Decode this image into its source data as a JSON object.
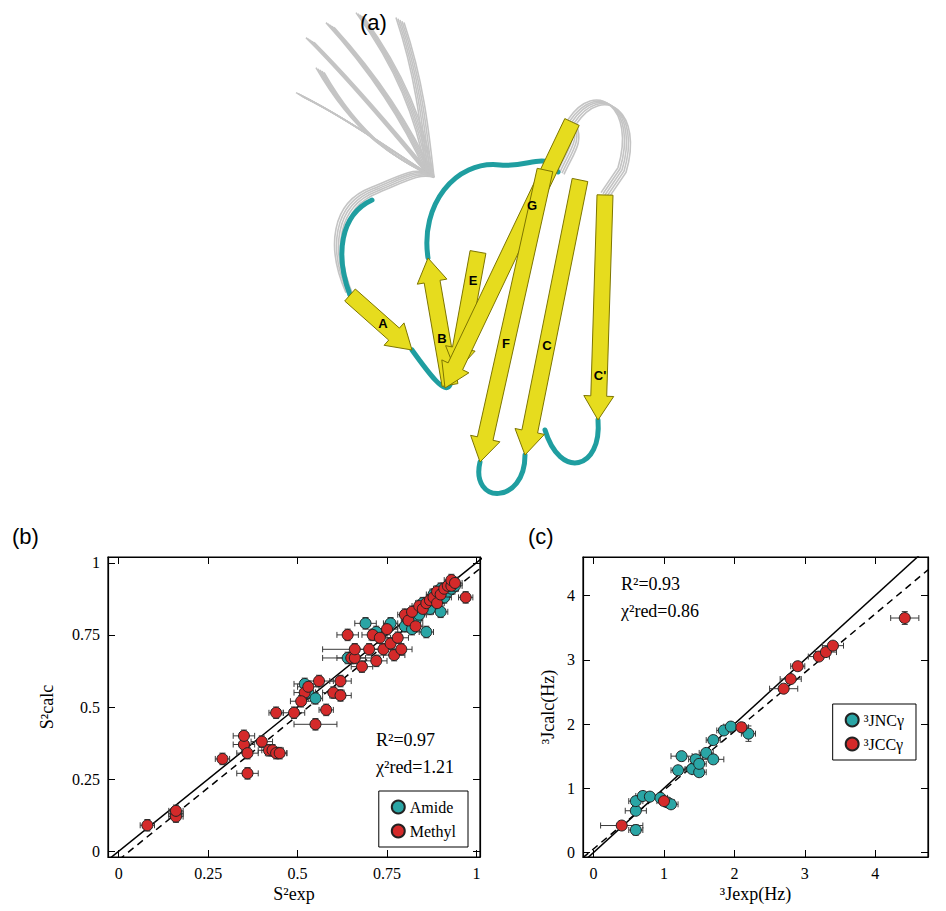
{
  "panel_a": {
    "label": "(a)",
    "strand_labels": [
      "A",
      "B",
      "E",
      "G",
      "F",
      "C",
      "C'"
    ]
  },
  "chart_data": [
    {
      "panel_label": "(b)",
      "type": "scatter",
      "x_label": "S²exp",
      "y_label": "S²calc",
      "xlim": [
        -0.03,
        1.01
      ],
      "ylim": [
        -0.02,
        1.02
      ],
      "xticks": [
        0,
        0.25,
        0.5,
        0.75,
        1
      ],
      "yticks": [
        0,
        0.25,
        0.5,
        0.75,
        1
      ],
      "annotations": [
        "R²=0.97",
        "χ²red=1.21"
      ],
      "legend": "lower right",
      "marker": "circle",
      "series": [
        {
          "name": "Amide",
          "color": "#2aa5a5",
          "values": [
            [
              0.16,
              0.13
            ],
            [
              0.52,
              0.58
            ],
            [
              0.53,
              0.55
            ],
            [
              0.55,
              0.53
            ],
            [
              0.64,
              0.67
            ],
            [
              0.69,
              0.79
            ],
            [
              0.72,
              0.76
            ],
            [
              0.76,
              0.79
            ],
            [
              0.8,
              0.78
            ],
            [
              0.82,
              0.77
            ],
            [
              0.83,
              0.8
            ],
            [
              0.84,
              0.82
            ],
            [
              0.85,
              0.86
            ],
            [
              0.86,
              0.76
            ],
            [
              0.87,
              0.84
            ],
            [
              0.88,
              0.89
            ],
            [
              0.89,
              0.88
            ],
            [
              0.9,
              0.83
            ],
            [
              0.9,
              0.91
            ],
            [
              0.91,
              0.88
            ],
            [
              0.92,
              0.9
            ],
            [
              0.93,
              0.91
            ],
            [
              0.94,
              0.92
            ]
          ],
          "x_errors": [
            0.02,
            0.03,
            0.02,
            0.02,
            0.03,
            0.03,
            0.02,
            0.02,
            0.02,
            0.02,
            0.02,
            0.02,
            0.02,
            0.02,
            0.02,
            0.02,
            0.02,
            0.02,
            0.02,
            0.02,
            0.02,
            0.02,
            0.02
          ],
          "y_errors": [
            0.02,
            0.02,
            0.02,
            0.02,
            0.02,
            0.02,
            0.02,
            0.02,
            0.02,
            0.02,
            0.02,
            0.02,
            0.02,
            0.02,
            0.02,
            0.02,
            0.02,
            0.02,
            0.02,
            0.02,
            0.02,
            0.02,
            0.02
          ]
        },
        {
          "name": "Methyl",
          "color": "#d42a2a",
          "values": [
            [
              0.08,
              0.09
            ],
            [
              0.16,
              0.12
            ],
            [
              0.16,
              0.14
            ],
            [
              0.29,
              0.32
            ],
            [
              0.35,
              0.37
            ],
            [
              0.35,
              0.4
            ],
            [
              0.36,
              0.34
            ],
            [
              0.36,
              0.27
            ],
            [
              0.4,
              0.38
            ],
            [
              0.42,
              0.35
            ],
            [
              0.43,
              0.35
            ],
            [
              0.44,
              0.34
            ],
            [
              0.45,
              0.34
            ],
            [
              0.44,
              0.48
            ],
            [
              0.49,
              0.48
            ],
            [
              0.52,
              0.55
            ],
            [
              0.53,
              0.57
            ],
            [
              0.55,
              0.44
            ],
            [
              0.56,
              0.59
            ],
            [
              0.58,
              0.49
            ],
            [
              0.6,
              0.55
            ],
            [
              0.62,
              0.54
            ],
            [
              0.62,
              0.59
            ],
            [
              0.64,
              0.75
            ],
            [
              0.65,
              0.67
            ],
            [
              0.66,
              0.67
            ],
            [
              0.66,
              0.7
            ],
            [
              0.68,
              0.64
            ],
            [
              0.7,
              0.7
            ],
            [
              0.71,
              0.75
            ],
            [
              0.72,
              0.66
            ],
            [
              0.73,
              0.74
            ],
            [
              0.74,
              0.7
            ],
            [
              0.75,
              0.77
            ],
            [
              0.76,
              0.72
            ],
            [
              0.77,
              0.68
            ],
            [
              0.78,
              0.74
            ],
            [
              0.79,
              0.7
            ],
            [
              0.8,
              0.82
            ],
            [
              0.81,
              0.8
            ],
            [
              0.82,
              0.83
            ],
            [
              0.83,
              0.78
            ],
            [
              0.84,
              0.85
            ],
            [
              0.85,
              0.84
            ],
            [
              0.86,
              0.86
            ],
            [
              0.87,
              0.87
            ],
            [
              0.88,
              0.88
            ],
            [
              0.89,
              0.86
            ],
            [
              0.89,
              0.9
            ],
            [
              0.9,
              0.89
            ],
            [
              0.91,
              0.91
            ],
            [
              0.92,
              0.92
            ],
            [
              0.93,
              0.92
            ],
            [
              0.93,
              0.94
            ],
            [
              0.94,
              0.93
            ],
            [
              0.97,
              0.88
            ],
            [
              0.51,
              0.52
            ]
          ],
          "x_errors": [
            0.02,
            0.02,
            0.02,
            0.02,
            0.03,
            0.03,
            0.03,
            0.03,
            0.03,
            0.03,
            0.03,
            0.03,
            0.02,
            0.02,
            0.03,
            0.03,
            0.03,
            0.06,
            0.04,
            0.02,
            0.03,
            0.03,
            0.03,
            0.03,
            0.08,
            0.03,
            0.09,
            0.03,
            0.03,
            0.03,
            0.03,
            0.03,
            0.03,
            0.03,
            0.03,
            0.03,
            0.03,
            0.03,
            0.02,
            0.02,
            0.02,
            0.02,
            0.02,
            0.02,
            0.02,
            0.02,
            0.02,
            0.02,
            0.02,
            0.02,
            0.02,
            0.02,
            0.02,
            0.02,
            0.02,
            0.02,
            0.03
          ],
          "y_errors": [
            0.02,
            0.02,
            0.02,
            0.02,
            0.02,
            0.02,
            0.02,
            0.02,
            0.02,
            0.02,
            0.02,
            0.02,
            0.02,
            0.02,
            0.02,
            0.02,
            0.02,
            0.02,
            0.02,
            0.02,
            0.02,
            0.02,
            0.02,
            0.02,
            0.02,
            0.02,
            0.02,
            0.02,
            0.02,
            0.02,
            0.02,
            0.02,
            0.02,
            0.02,
            0.02,
            0.02,
            0.02,
            0.02,
            0.02,
            0.02,
            0.02,
            0.02,
            0.02,
            0.02,
            0.02,
            0.02,
            0.02,
            0.02,
            0.02,
            0.02,
            0.02,
            0.02,
            0.02,
            0.02,
            0.02,
            0.02,
            0.02
          ]
        },
        {
          "type": "line",
          "line_style": "solid",
          "color": "#000000",
          "values": [
            [
              -0.03,
              -0.03
            ],
            [
              1.02,
              1.02
            ]
          ]
        },
        {
          "type": "line",
          "line_style": "dashed",
          "color": "#000000",
          "values": [
            [
              0,
              -0.03
            ],
            [
              1.02,
              0.99
            ]
          ]
        }
      ]
    },
    {
      "panel_label": "(c)",
      "type": "scatter",
      "x_label": "³Jexp(Hz)",
      "y_label": "³Jcalc(Hz)",
      "xlim": [
        -0.15,
        4.75
      ],
      "ylim": [
        -0.07,
        4.6
      ],
      "xticks": [
        0,
        1,
        2,
        3,
        4
      ],
      "yticks": [
        0,
        1,
        2,
        3,
        4
      ],
      "annotations": [
        "R²=0.93",
        "χ²red=0.86"
      ],
      "legend": "right",
      "marker": "circle",
      "series": [
        {
          "name": "³JNCγ",
          "color": "#2aa5a5",
          "values": [
            [
              0.6,
              0.35
            ],
            [
              0.6,
              0.65
            ],
            [
              0.6,
              0.8
            ],
            [
              0.7,
              0.88
            ],
            [
              0.8,
              0.87
            ],
            [
              0.95,
              0.85
            ],
            [
              1.05,
              0.78
            ],
            [
              1.1,
              0.75
            ],
            [
              1.2,
              1.28
            ],
            [
              1.25,
              1.5
            ],
            [
              1.4,
              1.3
            ],
            [
              1.45,
              1.45
            ],
            [
              1.5,
              1.25
            ],
            [
              1.5,
              1.38
            ],
            [
              1.6,
              1.55
            ],
            [
              1.7,
              1.45
            ],
            [
              1.7,
              1.75
            ],
            [
              1.85,
              1.9
            ],
            [
              1.95,
              1.96
            ],
            [
              2.2,
              1.85
            ]
          ],
          "x_errors": [
            0.1,
            0.15,
            0.1,
            0.1,
            0.15,
            0.1,
            0.1,
            0.1,
            0.1,
            0.15,
            0.1,
            0.1,
            0.1,
            0.1,
            0.1,
            0.15,
            0.1,
            0.1,
            0.1,
            0.1
          ],
          "y_errors": [
            0.08,
            0.06,
            0.06,
            0.06,
            0.06,
            0.06,
            0.06,
            0.06,
            0.06,
            0.06,
            0.06,
            0.06,
            0.06,
            0.06,
            0.06,
            0.06,
            0.06,
            0.06,
            0.06,
            0.12
          ]
        },
        {
          "name": "³JCCγ",
          "color": "#d42a2a",
          "values": [
            [
              0.4,
              0.42
            ],
            [
              1.0,
              0.8
            ],
            [
              2.1,
              1.95
            ],
            [
              2.7,
              2.55
            ],
            [
              2.8,
              2.7
            ],
            [
              2.9,
              2.9
            ],
            [
              3.2,
              3.05
            ],
            [
              3.3,
              3.12
            ],
            [
              3.4,
              3.22
            ],
            [
              4.42,
              3.65
            ]
          ],
          "x_errors": [
            0.3,
            0.1,
            0.1,
            0.2,
            0.15,
            0.1,
            0.15,
            0.15,
            0.15,
            0.2
          ],
          "y_errors": [
            0.05,
            0.05,
            0.05,
            0.06,
            0.06,
            0.05,
            0.05,
            0.05,
            0.06,
            0.1
          ]
        },
        {
          "type": "line",
          "line_style": "solid",
          "color": "#000000",
          "values": [
            [
              -0.15,
              -0.15
            ],
            [
              4.75,
              4.75
            ]
          ]
        },
        {
          "type": "line",
          "line_style": "dashed",
          "color": "#000000",
          "values": [
            [
              -0.15,
              -0.08
            ],
            [
              4.75,
              4.4
            ]
          ]
        }
      ]
    }
  ]
}
